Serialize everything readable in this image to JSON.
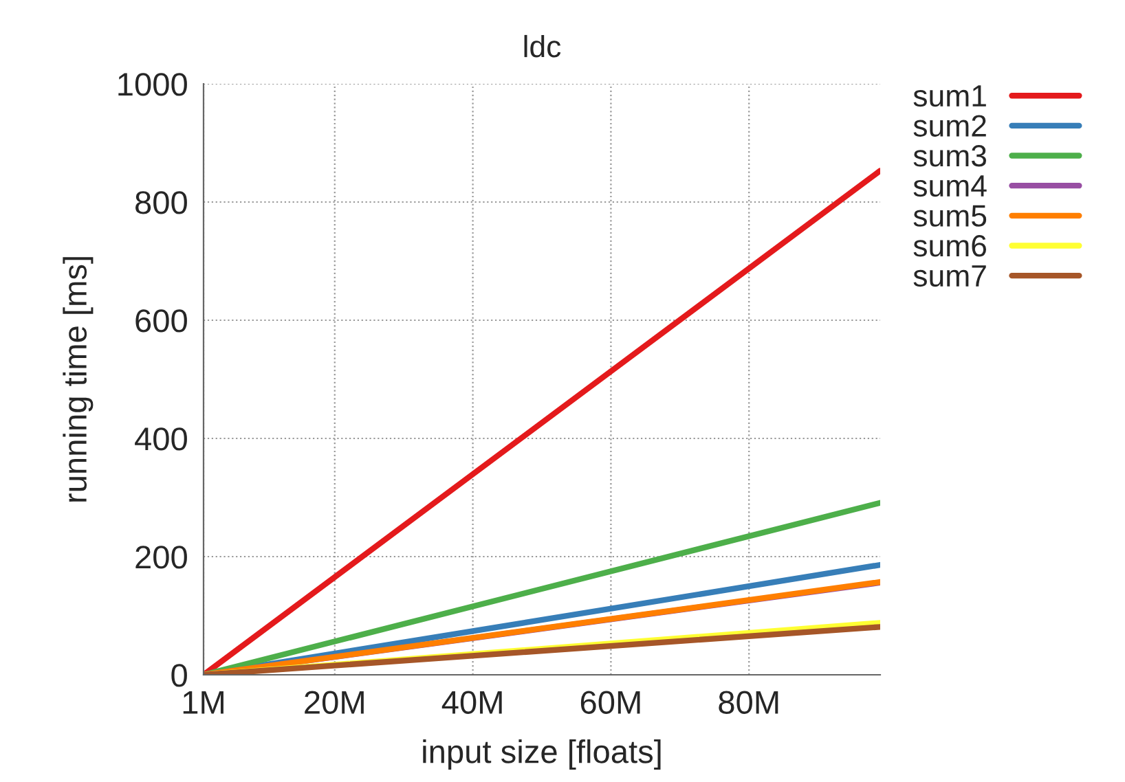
{
  "chart_data": {
    "type": "line",
    "title": "ldc",
    "xlabel": "input size [floats]",
    "ylabel": "running time [ms]",
    "x": [
      1,
      99
    ],
    "series": [
      {
        "name": "sum1",
        "color": "#e41a1c",
        "values": [
          0,
          853
        ]
      },
      {
        "name": "sum2",
        "color": "#377eb8",
        "values": [
          0,
          186
        ]
      },
      {
        "name": "sum3",
        "color": "#4daf4a",
        "values": [
          0,
          291
        ]
      },
      {
        "name": "sum4",
        "color": "#984ea3",
        "values": [
          0,
          156
        ]
      },
      {
        "name": "sum5",
        "color": "#ff7f00",
        "values": [
          0,
          157
        ]
      },
      {
        "name": "sum6",
        "color": "#ffff33",
        "values": [
          0,
          88
        ]
      },
      {
        "name": "sum7",
        "color": "#a65628",
        "values": [
          0,
          81
        ]
      }
    ],
    "xlim": [
      1,
      99
    ],
    "xticks": [
      {
        "value": 1,
        "label": "1M"
      },
      {
        "value": 20,
        "label": "20M"
      },
      {
        "value": 40,
        "label": "40M"
      },
      {
        "value": 60,
        "label": "60M"
      },
      {
        "value": 80,
        "label": "80M"
      }
    ],
    "ylim": [
      0,
      1000
    ],
    "yticks": [
      0,
      200,
      400,
      600,
      800,
      1000
    ],
    "grid": true,
    "legend": "top right",
    "marker": "none",
    "line_style": "solid"
  }
}
